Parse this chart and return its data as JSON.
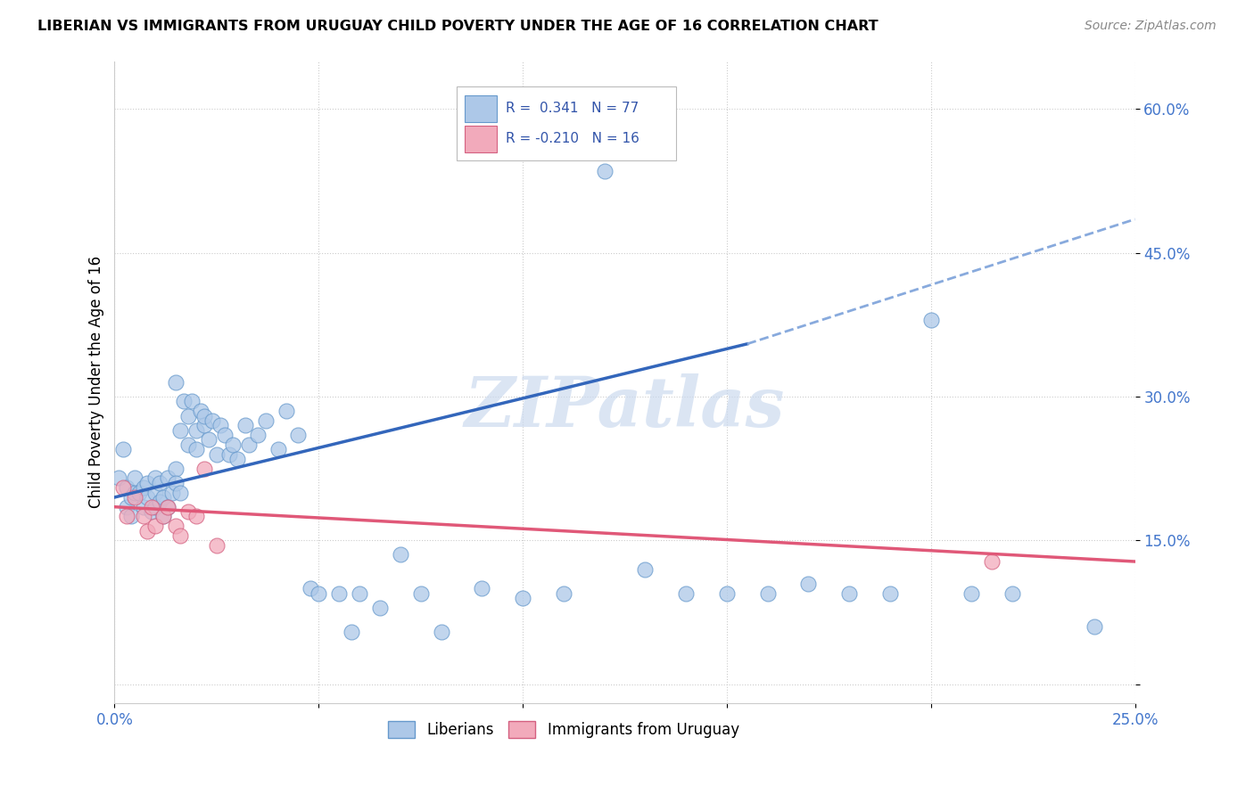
{
  "title": "LIBERIAN VS IMMIGRANTS FROM URUGUAY CHILD POVERTY UNDER THE AGE OF 16 CORRELATION CHART",
  "source": "Source: ZipAtlas.com",
  "ylabel": "Child Poverty Under the Age of 16",
  "xlim": [
    0.0,
    0.25
  ],
  "ylim": [
    -0.02,
    0.65
  ],
  "x_ticks": [
    0.0,
    0.05,
    0.1,
    0.15,
    0.2,
    0.25
  ],
  "y_ticks": [
    0.0,
    0.15,
    0.3,
    0.45,
    0.6
  ],
  "liberian_R": 0.341,
  "liberian_N": 77,
  "uruguay_R": -0.21,
  "uruguay_N": 16,
  "liberian_color": "#adc8e8",
  "liberian_edge": "#6699cc",
  "uruguay_color": "#f2aabb",
  "uruguay_edge": "#d46080",
  "trend_liberian_color": "#3366bb",
  "trend_uruguay_color": "#e05878",
  "trend_dashed_color": "#88aadd",
  "watermark_text": "ZIPatlas",
  "trend_lib_x0": 0.0,
  "trend_lib_y0": 0.195,
  "trend_lib_x1": 0.155,
  "trend_lib_y1": 0.355,
  "trend_dash_x0": 0.155,
  "trend_dash_y0": 0.355,
  "trend_dash_x1": 0.25,
  "trend_dash_y1": 0.485,
  "trend_uru_x0": 0.0,
  "trend_uru_y0": 0.185,
  "trend_uru_x1": 0.25,
  "trend_uru_y1": 0.128,
  "liberian_pts_x": [
    0.001,
    0.002,
    0.003,
    0.003,
    0.004,
    0.004,
    0.005,
    0.005,
    0.006,
    0.007,
    0.007,
    0.008,
    0.008,
    0.009,
    0.01,
    0.01,
    0.01,
    0.011,
    0.011,
    0.012,
    0.012,
    0.013,
    0.013,
    0.014,
    0.015,
    0.015,
    0.015,
    0.016,
    0.016,
    0.017,
    0.018,
    0.018,
    0.019,
    0.02,
    0.02,
    0.021,
    0.022,
    0.022,
    0.023,
    0.024,
    0.025,
    0.026,
    0.027,
    0.028,
    0.029,
    0.03,
    0.032,
    0.033,
    0.035,
    0.037,
    0.04,
    0.042,
    0.045,
    0.048,
    0.05,
    0.055,
    0.058,
    0.06,
    0.065,
    0.07,
    0.075,
    0.08,
    0.09,
    0.1,
    0.11,
    0.12,
    0.13,
    0.14,
    0.15,
    0.16,
    0.17,
    0.18,
    0.19,
    0.2,
    0.21,
    0.22,
    0.24
  ],
  "liberian_pts_y": [
    0.215,
    0.245,
    0.185,
    0.205,
    0.175,
    0.195,
    0.2,
    0.215,
    0.2,
    0.185,
    0.205,
    0.195,
    0.21,
    0.18,
    0.215,
    0.2,
    0.185,
    0.19,
    0.21,
    0.195,
    0.175,
    0.215,
    0.185,
    0.2,
    0.315,
    0.225,
    0.21,
    0.265,
    0.2,
    0.295,
    0.28,
    0.25,
    0.295,
    0.265,
    0.245,
    0.285,
    0.27,
    0.28,
    0.255,
    0.275,
    0.24,
    0.27,
    0.26,
    0.24,
    0.25,
    0.235,
    0.27,
    0.25,
    0.26,
    0.275,
    0.245,
    0.285,
    0.26,
    0.1,
    0.095,
    0.095,
    0.055,
    0.095,
    0.08,
    0.135,
    0.095,
    0.055,
    0.1,
    0.09,
    0.095,
    0.535,
    0.12,
    0.095,
    0.095,
    0.095,
    0.105,
    0.095,
    0.095,
    0.38,
    0.095,
    0.095,
    0.06
  ],
  "uruguay_pts_x": [
    0.002,
    0.003,
    0.005,
    0.007,
    0.008,
    0.009,
    0.01,
    0.012,
    0.013,
    0.015,
    0.016,
    0.018,
    0.02,
    0.022,
    0.025,
    0.215
  ],
  "uruguay_pts_y": [
    0.205,
    0.175,
    0.195,
    0.175,
    0.16,
    0.185,
    0.165,
    0.175,
    0.185,
    0.165,
    0.155,
    0.18,
    0.175,
    0.225,
    0.145,
    0.128
  ]
}
